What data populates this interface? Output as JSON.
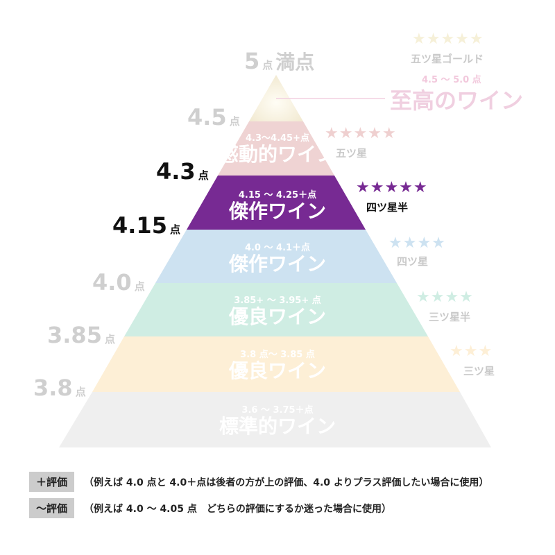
{
  "colors": {
    "supreme": "#f5efdb",
    "moving": "#efd3d3",
    "masterpiece_high": "#772a93",
    "masterpiece": "#cde2f1",
    "excellent_high": "#cfede3",
    "excellent": "#fdefd6",
    "standard": "#efefef"
  },
  "scores": {
    "full": "5",
    "full_pt": "点",
    "full_label": "満点",
    "s45": "4.5",
    "s43": "4.3",
    "s415": "4.15",
    "s40": "4.0",
    "s385": "3.85",
    "s38": "3.8",
    "pt": "点"
  },
  "tiers": [
    {
      "range": "4.5 〜 5.0 点",
      "name": "至高のワイン",
      "stars": "★★★★★",
      "star_label": "五ツ星ゴールド"
    },
    {
      "range": "4.3〜4.45+点",
      "name": "感動的ワイン",
      "stars": "★★★★★",
      "star_label": "五ツ星"
    },
    {
      "range": "4.15 〜 4.25＋点",
      "name": "傑作ワイン",
      "stars": "★★★★★",
      "star_label": "四ツ星半"
    },
    {
      "range": "4.0 〜 4.1＋点",
      "name": "傑作ワイン",
      "stars": "★★★★",
      "star_label": "四ツ星"
    },
    {
      "range": "3.85+ 〜 3.95+ 点",
      "name": "優良ワイン",
      "stars": "★★★★",
      "star_label": "三ツ星半"
    },
    {
      "range": "3.8 点〜 3.85 点",
      "name": "優良ワイン",
      "stars": "★★★",
      "star_label": "三ツ星"
    },
    {
      "range": "3.6 〜 3.75＋点",
      "name": "標準的ワイン"
    }
  ],
  "notes": [
    {
      "tag": "＋評価",
      "text": "（例えば 4.0 点と 4.0＋点は後者の方が上の評価、4.0 よりプラス評価したい場合に使用）"
    },
    {
      "tag": "〜評価",
      "text": "（例えば 4.0 〜 4.05 点　どちらの評価にするか迷った場合に使用）"
    }
  ]
}
